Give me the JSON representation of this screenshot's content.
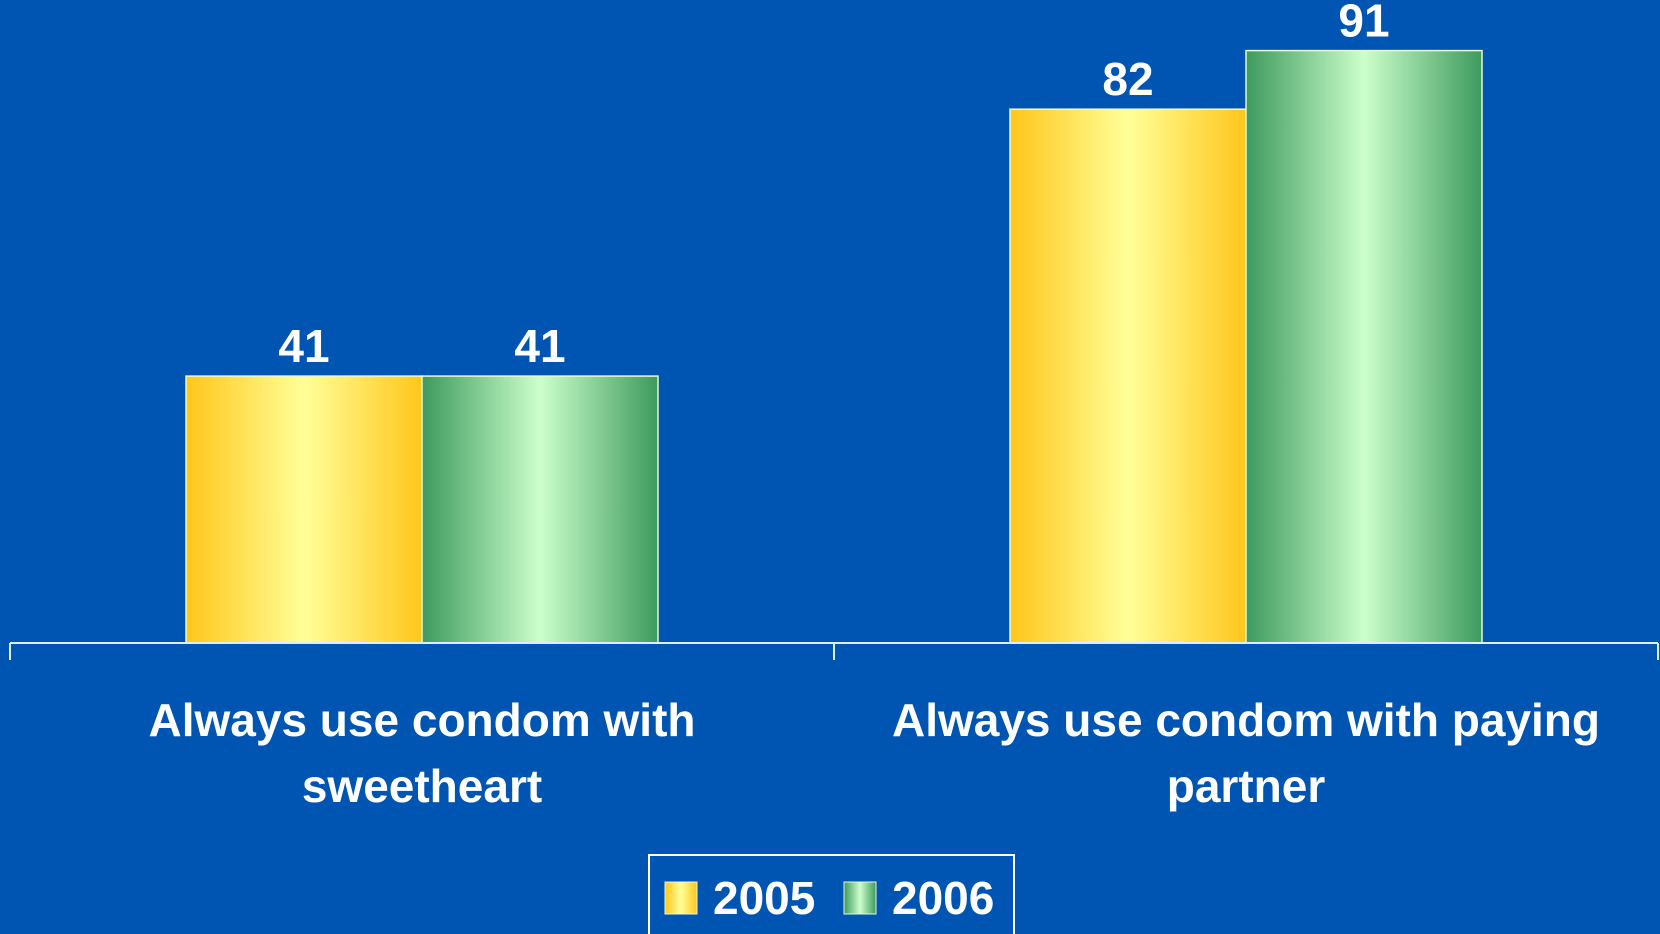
{
  "chart_data": {
    "type": "bar",
    "categories": [
      "Always use condom with sweetheart",
      "Always use condom with paying partner"
    ],
    "series": [
      {
        "name": "2005",
        "color": "#ffc61a",
        "values": [
          41,
          82
        ]
      },
      {
        "name": "2006",
        "color": "#3d9a5e",
        "values": [
          41,
          91
        ]
      }
    ],
    "legend": "bottom"
  }
}
